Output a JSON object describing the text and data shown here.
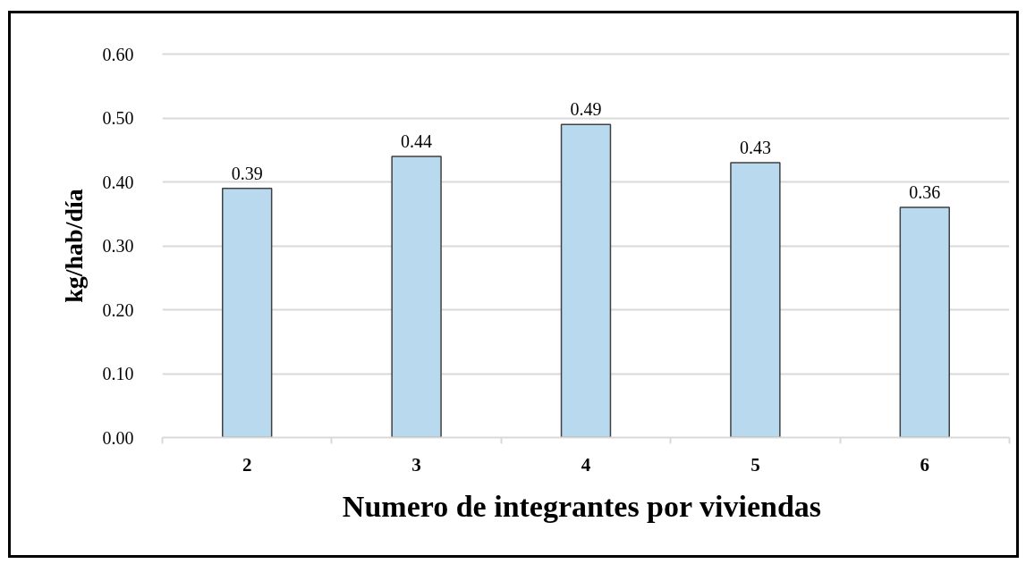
{
  "chart_data": {
    "type": "bar",
    "xlabel": "Numero de integrantes  por viviendas",
    "ylabel": "kg/hab/día",
    "categories": [
      "2",
      "3",
      "4",
      "5",
      "6"
    ],
    "values": [
      0.39,
      0.44,
      0.49,
      0.43,
      0.36
    ],
    "color": "#b8d9ee",
    "ylim": [
      0,
      0.6
    ],
    "yticks": [
      {
        "value": 0,
        "label": "0.00"
      },
      {
        "value": 0.1,
        "label": "0.10"
      },
      {
        "value": 0.2,
        "label": "0.20"
      },
      {
        "value": 0.3,
        "label": "0.30"
      },
      {
        "value": 0.4,
        "label": "0.40"
      },
      {
        "value": 0.5,
        "label": "0.50"
      },
      {
        "value": 0.6,
        "label": "0.60"
      }
    ],
    "grid": "y",
    "data_labels": true
  }
}
